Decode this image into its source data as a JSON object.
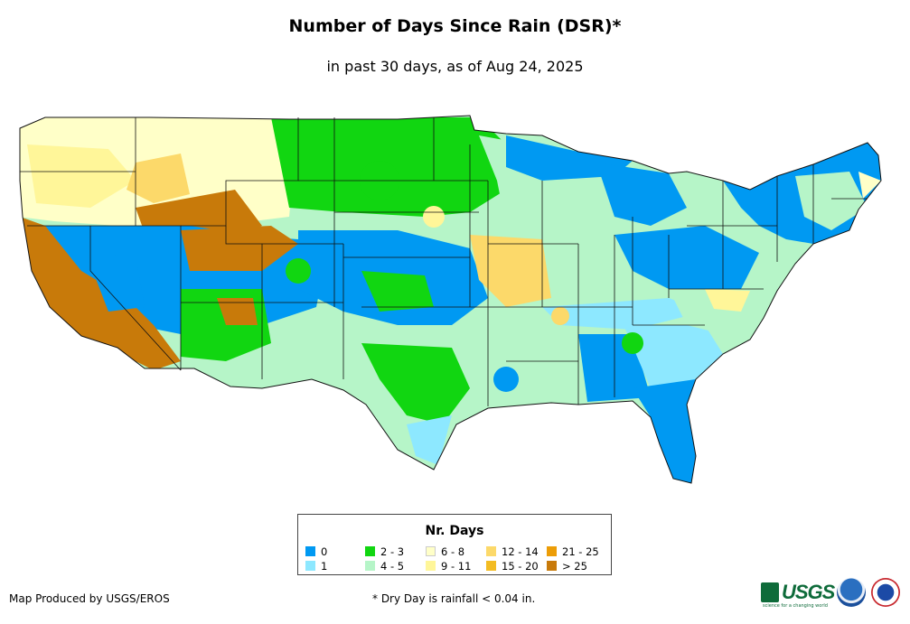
{
  "title": "Number of Days Since Rain (DSR)*",
  "subtitle": "in past 30 days, as of Aug 24, 2025",
  "legend": {
    "title": "Nr. Days",
    "items": [
      {
        "label": "0",
        "color": "#0099f2"
      },
      {
        "label": "1",
        "color": "#8de8ff"
      },
      {
        "label": "2 - 3",
        "color": "#11d611"
      },
      {
        "label": "4 - 5",
        "color": "#b6f5c8"
      },
      {
        "label": "6 - 8",
        "color": "#ffffc8"
      },
      {
        "label": "9 - 11",
        "color": "#fff699"
      },
      {
        "label": "12 - 14",
        "color": "#fcd96a"
      },
      {
        "label": "15 - 20",
        "color": "#f3bc22"
      },
      {
        "label": "21 - 25",
        "color": "#ec9d07"
      },
      {
        "label": "> 25",
        "color": "#c87a0a"
      }
    ]
  },
  "footer": {
    "credit": "Map Produced by USGS/EROS",
    "footnote": "* Dry Day is rainfall < 0.04 in.",
    "usgs_logo_text": "USGS",
    "usgs_tagline": "science for a changing world"
  },
  "map_regions": [
    {
      "name": "Southern California",
      "category": "> 25"
    },
    {
      "name": "Pacific Northwest",
      "category": "6 - 8"
    },
    {
      "name": "Great Basin",
      "category": "0"
    },
    {
      "name": "Northern Plains",
      "category": "2 - 3"
    },
    {
      "name": "Central Plains",
      "category": "0"
    },
    {
      "name": "Florida",
      "category": "0"
    },
    {
      "name": "Northeast",
      "category": "0"
    },
    {
      "name": "Texas Gulf Coast",
      "category": "2 - 3"
    },
    {
      "name": "Ohio Valley",
      "category": "4 - 5"
    }
  ]
}
